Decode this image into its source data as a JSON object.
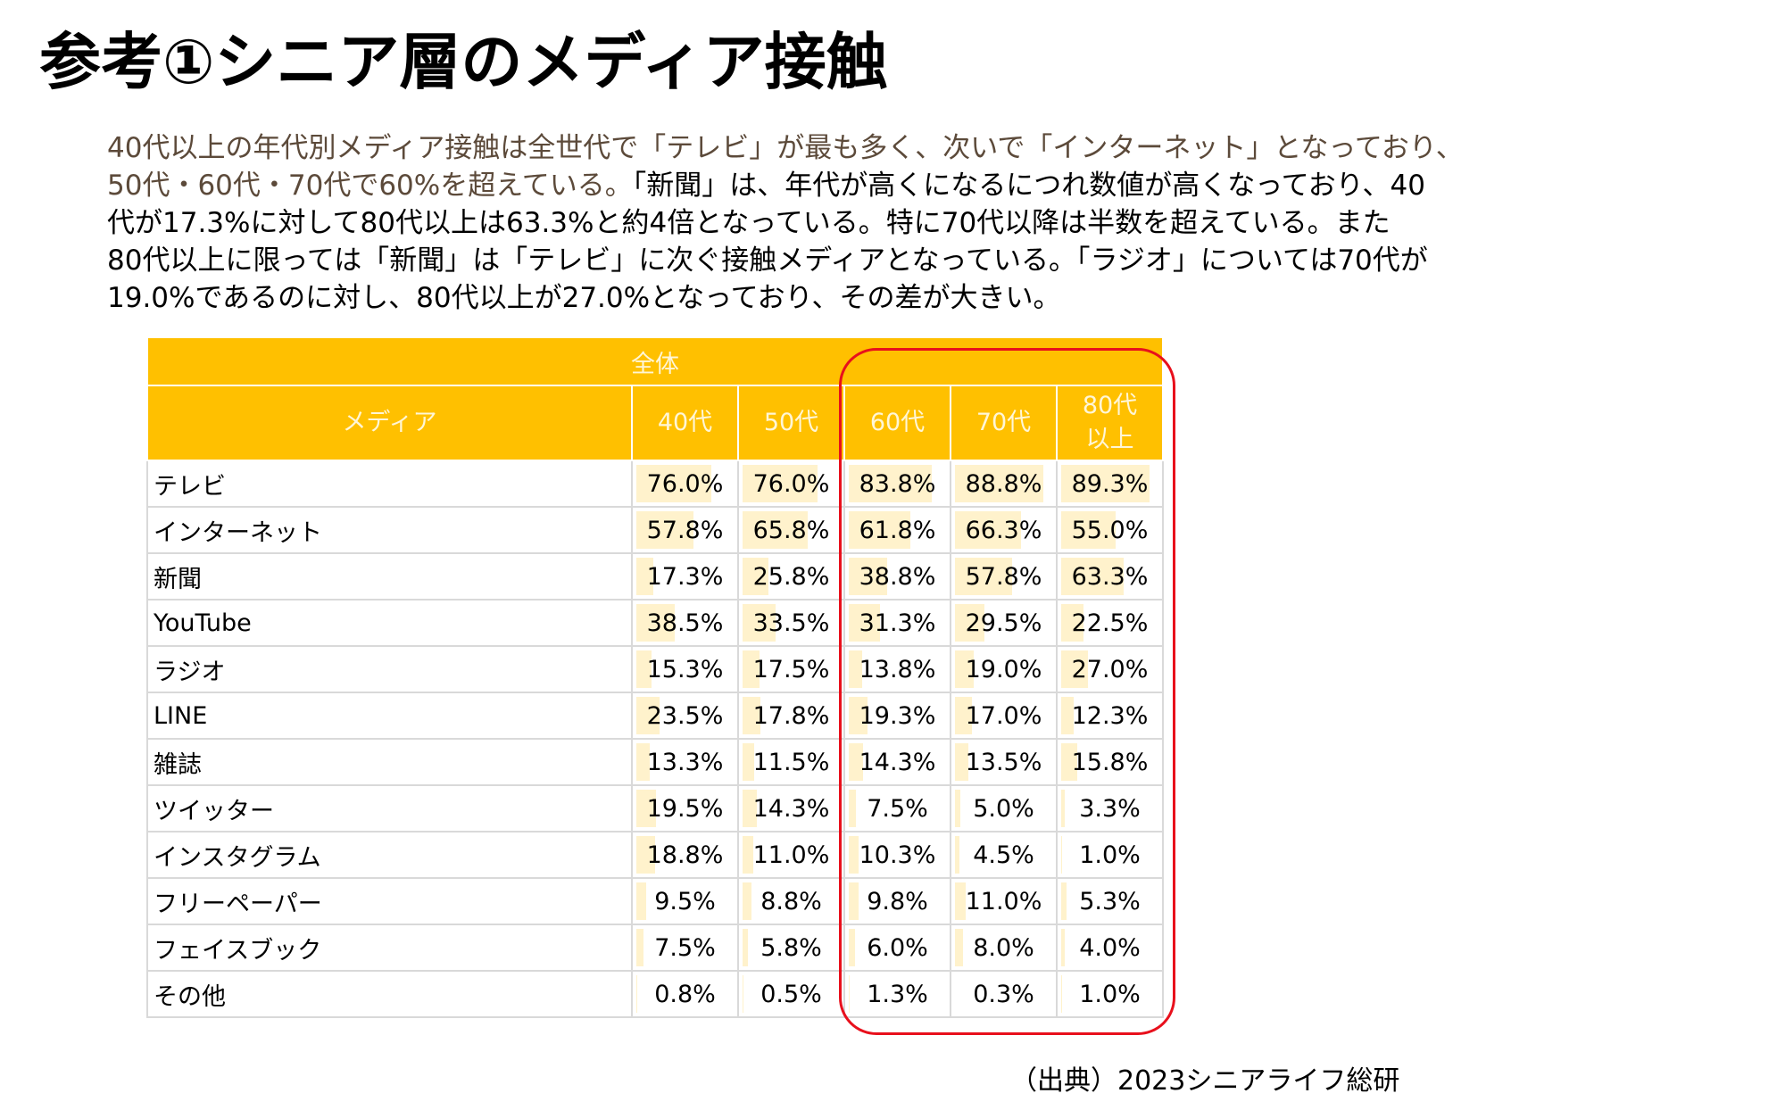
{
  "title": "参考①シニア層のメディア接触",
  "description": {
    "line1": "40代以上の年代別メディア接触は全世代で「テレビ」が最も多く、次いで「インターネット」となっており、",
    "line2a": "50代・60代・70代で60%を超えている。",
    "line2b": "「新聞」は、年代が高くになるにつれ数値が高くなっており、40",
    "line3": "代が17.3%に対して80代以上は63.3%と約4倍となっている。特に70代以降は半数を超えている。また",
    "line4": "80代以上に限っては「新聞」は「テレビ」に次ぐ接触メディアとなっている。「ラジオ」については70代が",
    "line5": "19.0%であるのに対し、80代以上が27.0%となっており、その差が大きい。"
  },
  "table": {
    "group_label": "全体",
    "media_header": "メディア",
    "age_headers": [
      "40代",
      "50代",
      "60代",
      "70代",
      "80代",
      "以上"
    ],
    "rows": [
      {
        "name": "テレビ",
        "values": [
          "76.0%",
          "76.0%",
          "83.8%",
          "88.8%",
          "89.3%"
        ],
        "nums": [
          76.0,
          76.0,
          83.8,
          88.8,
          89.3
        ]
      },
      {
        "name": "インターネット",
        "values": [
          "57.8%",
          "65.8%",
          "61.8%",
          "66.3%",
          "55.0%"
        ],
        "nums": [
          57.8,
          65.8,
          61.8,
          66.3,
          55.0
        ]
      },
      {
        "name": "新聞",
        "values": [
          "17.3%",
          "25.8%",
          "38.8%",
          "57.8%",
          "63.3%"
        ],
        "nums": [
          17.3,
          25.8,
          38.8,
          57.8,
          63.3
        ]
      },
      {
        "name": "YouTube",
        "values": [
          "38.5%",
          "33.5%",
          "31.3%",
          "29.5%",
          "22.5%"
        ],
        "nums": [
          38.5,
          33.5,
          31.3,
          29.5,
          22.5
        ]
      },
      {
        "name": "ラジオ",
        "values": [
          "15.3%",
          "17.5%",
          "13.8%",
          "19.0%",
          "27.0%"
        ],
        "nums": [
          15.3,
          17.5,
          13.8,
          19.0,
          27.0
        ]
      },
      {
        "name": "LINE",
        "values": [
          "23.5%",
          "17.8%",
          "19.3%",
          "17.0%",
          "12.3%"
        ],
        "nums": [
          23.5,
          17.8,
          19.3,
          17.0,
          12.3
        ]
      },
      {
        "name": "雑誌",
        "values": [
          "13.3%",
          "11.5%",
          "14.3%",
          "13.5%",
          "15.8%"
        ],
        "nums": [
          13.3,
          11.5,
          14.3,
          13.5,
          15.8
        ]
      },
      {
        "name": "ツイッター",
        "values": [
          "19.5%",
          "14.3%",
          "7.5%",
          "5.0%",
          "3.3%"
        ],
        "nums": [
          19.5,
          14.3,
          7.5,
          5.0,
          3.3
        ]
      },
      {
        "name": "インスタグラム",
        "values": [
          "18.8%",
          "11.0%",
          "10.3%",
          "4.5%",
          "1.0%"
        ],
        "nums": [
          18.8,
          11.0,
          10.3,
          4.5,
          1.0
        ]
      },
      {
        "name": "フリーペーパー",
        "values": [
          "9.5%",
          "8.8%",
          "9.8%",
          "11.0%",
          "5.3%"
        ],
        "nums": [
          9.5,
          8.8,
          9.8,
          11.0,
          5.3
        ]
      },
      {
        "name": "フェイスブック",
        "values": [
          "7.5%",
          "5.8%",
          "6.0%",
          "8.0%",
          "4.0%"
        ],
        "nums": [
          7.5,
          5.8,
          6.0,
          8.0,
          4.0
        ]
      },
      {
        "name": "その他",
        "values": [
          "0.8%",
          "0.5%",
          "1.3%",
          "0.3%",
          "1.0%"
        ],
        "nums": [
          0.8,
          0.5,
          1.3,
          0.3,
          1.0
        ]
      }
    ]
  },
  "source": "（出典）2023シニアライフ総研",
  "colors": {
    "header_bg": "#ffc000",
    "header_text": "#fff6d6",
    "bar_fill": "#fff2cc",
    "highlight": "#e8101c",
    "description_brown": "#5c4a3a"
  }
}
